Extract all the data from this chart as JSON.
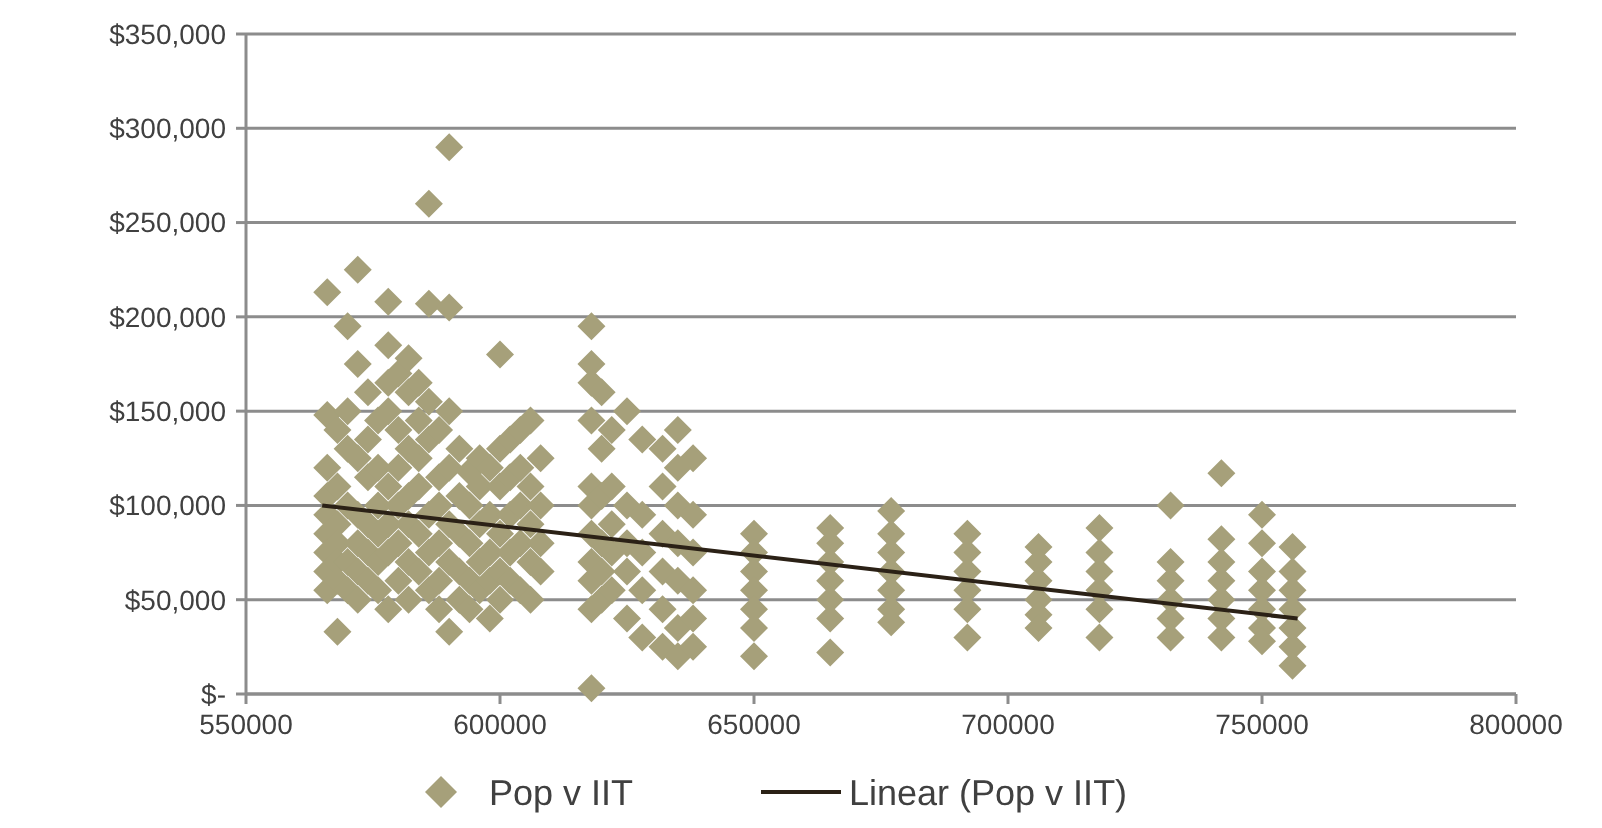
{
  "chart_data": {
    "type": "scatter",
    "xlim": [
      550000,
      800000
    ],
    "ylim": [
      0,
      350000
    ],
    "xticks": [
      550000,
      600000,
      650000,
      700000,
      750000,
      800000
    ],
    "yticks": [
      {
        "value": 0,
        "label": "$-"
      },
      {
        "value": 50000,
        "label": "$50,000"
      },
      {
        "value": 100000,
        "label": "$100,000"
      },
      {
        "value": 150000,
        "label": "$150,000"
      },
      {
        "value": 200000,
        "label": "$200,000"
      },
      {
        "value": 250000,
        "label": "$250,000"
      },
      {
        "value": 300000,
        "label": "$300,000"
      },
      {
        "value": 350000,
        "label": "$350,000"
      }
    ],
    "grid": "y",
    "legend": "bottom",
    "series": [
      {
        "name": "Pop v IIT",
        "marker": "diamond",
        "color": "#a6a07a",
        "x": [
          566000,
          566000,
          566000,
          566000,
          566000,
          566000,
          566000,
          566000,
          566000,
          568000,
          568000,
          568000,
          568000,
          568000,
          568000,
          568000,
          570000,
          570000,
          570000,
          570000,
          570000,
          570000,
          572000,
          572000,
          572000,
          572000,
          572000,
          572000,
          572000,
          574000,
          574000,
          574000,
          574000,
          574000,
          574000,
          576000,
          576000,
          576000,
          576000,
          576000,
          576000,
          578000,
          578000,
          578000,
          578000,
          578000,
          578000,
          578000,
          578000,
          580000,
          580000,
          580000,
          580000,
          580000,
          580000,
          582000,
          582000,
          582000,
          582000,
          582000,
          582000,
          582000,
          584000,
          584000,
          584000,
          584000,
          584000,
          584000,
          586000,
          586000,
          586000,
          586000,
          586000,
          586000,
          586000,
          588000,
          588000,
          588000,
          588000,
          588000,
          588000,
          590000,
          590000,
          590000,
          590000,
          590000,
          590000,
          590000,
          592000,
          592000,
          592000,
          592000,
          592000,
          594000,
          594000,
          594000,
          594000,
          594000,
          596000,
          596000,
          596000,
          596000,
          596000,
          598000,
          598000,
          598000,
          598000,
          598000,
          600000,
          600000,
          600000,
          600000,
          600000,
          600000,
          602000,
          602000,
          602000,
          602000,
          602000,
          604000,
          604000,
          604000,
          604000,
          604000,
          606000,
          606000,
          606000,
          606000,
          606000,
          608000,
          608000,
          608000,
          608000,
          618000,
          618000,
          618000,
          618000,
          618000,
          618000,
          618000,
          618000,
          618000,
          618000,
          618000,
          620000,
          620000,
          620000,
          620000,
          620000,
          620000,
          622000,
          622000,
          622000,
          622000,
          622000,
          625000,
          625000,
          625000,
          625000,
          625000,
          628000,
          628000,
          628000,
          628000,
          628000,
          632000,
          632000,
          632000,
          632000,
          632000,
          632000,
          635000,
          635000,
          635000,
          635000,
          635000,
          635000,
          635000,
          638000,
          638000,
          638000,
          638000,
          638000,
          638000,
          650000,
          650000,
          650000,
          650000,
          650000,
          650000,
          650000,
          665000,
          665000,
          665000,
          665000,
          665000,
          665000,
          665000,
          677000,
          677000,
          677000,
          677000,
          677000,
          677000,
          677000,
          692000,
          692000,
          692000,
          692000,
          692000,
          692000,
          706000,
          706000,
          706000,
          706000,
          706000,
          706000,
          718000,
          718000,
          718000,
          718000,
          718000,
          718000,
          732000,
          732000,
          732000,
          732000,
          732000,
          732000,
          742000,
          742000,
          742000,
          742000,
          742000,
          742000,
          742000,
          750000,
          750000,
          750000,
          750000,
          750000,
          750000,
          750000,
          756000,
          756000,
          756000,
          756000,
          756000,
          756000,
          756000
        ],
        "values": [
          213000,
          148000,
          120000,
          105000,
          95000,
          85000,
          75000,
          65000,
          55000,
          140000,
          110000,
          90000,
          80000,
          70000,
          60000,
          33000,
          195000,
          150000,
          130000,
          100000,
          70000,
          55000,
          225000,
          175000,
          125000,
          95000,
          80000,
          65000,
          50000,
          160000,
          135000,
          115000,
          90000,
          75000,
          60000,
          145000,
          120000,
          100000,
          85000,
          70000,
          55000,
          208000,
          185000,
          165000,
          150000,
          110000,
          90000,
          75000,
          45000,
          170000,
          140000,
          120000,
          100000,
          80000,
          60000,
          178000,
          160000,
          130000,
          105000,
          90000,
          70000,
          50000,
          165000,
          145000,
          125000,
          110000,
          85000,
          65000,
          260000,
          207000,
          155000,
          135000,
          95000,
          75000,
          55000,
          140000,
          115000,
          100000,
          80000,
          60000,
          45000,
          290000,
          205000,
          150000,
          120000,
          90000,
          70000,
          33000,
          130000,
          105000,
          85000,
          65000,
          50000,
          118000,
          100000,
          80000,
          60000,
          45000,
          125000,
          110000,
          90000,
          70000,
          55000,
          120000,
          95000,
          75000,
          60000,
          40000,
          180000,
          130000,
          110000,
          85000,
          65000,
          50000,
          135000,
          115000,
          95000,
          75000,
          60000,
          140000,
          120000,
          100000,
          80000,
          55000,
          145000,
          110000,
          90000,
          70000,
          50000,
          125000,
          100000,
          80000,
          65000,
          195000,
          175000,
          165000,
          145000,
          110000,
          100000,
          85000,
          70000,
          60000,
          45000,
          3000,
          160000,
          130000,
          105000,
          80000,
          65000,
          50000,
          140000,
          110000,
          90000,
          75000,
          55000,
          150000,
          100000,
          80000,
          65000,
          40000,
          135000,
          95000,
          75000,
          55000,
          30000,
          130000,
          110000,
          85000,
          65000,
          45000,
          25000,
          140000,
          120000,
          100000,
          80000,
          60000,
          35000,
          20000,
          125000,
          95000,
          75000,
          55000,
          40000,
          25000,
          85000,
          75000,
          65000,
          55000,
          45000,
          35000,
          20000,
          88000,
          80000,
          70000,
          60000,
          50000,
          40000,
          22000,
          97000,
          85000,
          75000,
          65000,
          55000,
          45000,
          38000,
          85000,
          75000,
          65000,
          55000,
          45000,
          30000,
          78000,
          70000,
          60000,
          50000,
          42000,
          35000,
          88000,
          75000,
          65000,
          55000,
          45000,
          30000,
          100000,
          70000,
          60000,
          50000,
          40000,
          30000,
          117000,
          82000,
          70000,
          60000,
          50000,
          40000,
          30000,
          95000,
          80000,
          65000,
          55000,
          45000,
          35000,
          28000,
          78000,
          65000,
          55000,
          45000,
          35000,
          25000,
          15000
        ]
      },
      {
        "name": "Linear (Pop v IIT)",
        "type": "line",
        "marker": "none",
        "color": "#2b2116",
        "x": [
          565000,
          757000
        ],
        "values": [
          100000,
          40000
        ]
      }
    ]
  }
}
